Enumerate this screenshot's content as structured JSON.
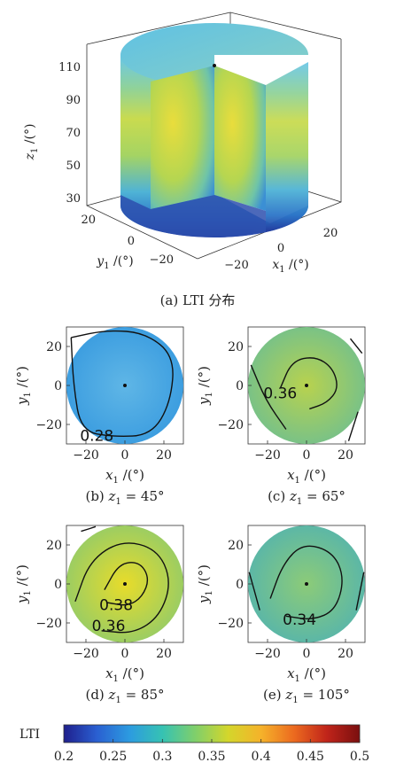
{
  "chart_data": [
    {
      "type": "surface",
      "caption_prefix": "(a) LTI 分布",
      "axes": {
        "x": {
          "label": "x",
          "sub": "1",
          "unit": " /(°)",
          "ticks": [
            "−20",
            "0",
            "20"
          ]
        },
        "y": {
          "label": "y",
          "sub": "1",
          "unit": " /(°)",
          "ticks": [
            "20",
            "0",
            "−20"
          ]
        },
        "z": {
          "label": "z",
          "sub": "1",
          "unit": " /(°)",
          "ticks": [
            "110",
            "90",
            "70",
            "50",
            "30"
          ],
          "range": [
            30,
            110
          ]
        }
      },
      "description_values": {
        "cylinder_radius_deg": 30,
        "cutaway": "quarter removed"
      }
    },
    {
      "type": "heatmap",
      "caption": {
        "prefix": "(b) ",
        "var": "z",
        "sub": "1",
        "eq": " = 45°"
      },
      "xlim": [
        -30,
        30
      ],
      "ylim": [
        -30,
        30
      ],
      "xticks": [
        "−20",
        "0",
        "20"
      ],
      "yticks": [
        "20",
        "0",
        "−20"
      ],
      "xlabel": {
        "var": "x",
        "sub": "1",
        "unit": " /(°)"
      },
      "ylabel": {
        "var": "y",
        "sub": "1",
        "unit": " /(°)"
      },
      "base_color": "#3d9ee0",
      "center_color": "#5fb6e6",
      "contours": [
        {
          "level": "0.28"
        }
      ]
    },
    {
      "type": "heatmap",
      "caption": {
        "prefix": "(c) ",
        "var": "z",
        "sub": "1",
        "eq": " = 65°"
      },
      "xlim": [
        -30,
        30
      ],
      "ylim": [
        -30,
        30
      ],
      "xticks": [
        "−20",
        "0",
        "20"
      ],
      "yticks": [
        "20",
        "0",
        "−20"
      ],
      "xlabel": {
        "var": "x",
        "sub": "1",
        "unit": " /(°)"
      },
      "ylabel": {
        "var": "y",
        "sub": "1",
        "unit": " /(°)"
      },
      "base_color": "#7ac286",
      "center_color": "#b8d24e",
      "contours": [
        {
          "level": "0.36"
        }
      ]
    },
    {
      "type": "heatmap",
      "caption": {
        "prefix": "(d) ",
        "var": "z",
        "sub": "1",
        "eq": " = 85°"
      },
      "xlim": [
        -30,
        30
      ],
      "ylim": [
        -30,
        30
      ],
      "xticks": [
        "−20",
        "0",
        "20"
      ],
      "yticks": [
        "20",
        "0",
        "−20"
      ],
      "xlabel": {
        "var": "x",
        "sub": "1",
        "unit": " /(°)"
      },
      "ylabel": {
        "var": "y",
        "sub": "1",
        "unit": " /(°)"
      },
      "base_color": "#9ccd62",
      "center_color": "#e8dc2a",
      "contours": [
        {
          "level": "0.38"
        },
        {
          "level": "0.36"
        }
      ]
    },
    {
      "type": "heatmap",
      "caption": {
        "prefix": "(e) ",
        "var": "z",
        "sub": "1",
        "eq": " = 105°"
      },
      "xlim": [
        -30,
        30
      ],
      "ylim": [
        -30,
        30
      ],
      "xticks": [
        "−20",
        "0",
        "20"
      ],
      "yticks": [
        "20",
        "0",
        "−20"
      ],
      "xlabel": {
        "var": "x",
        "sub": "1",
        "unit": " /(°)"
      },
      "ylabel": {
        "var": "y",
        "sub": "1",
        "unit": " /(°)"
      },
      "base_color": "#5cb7a6",
      "center_color": "#8ccb78",
      "contours": [
        {
          "level": "0.34"
        }
      ]
    }
  ],
  "colorbar": {
    "label": "LTI",
    "ticks": [
      "0.2",
      "0.25",
      "0.3",
      "0.35",
      "0.4",
      "0.45",
      "0.5"
    ],
    "range": [
      0.2,
      0.5
    ],
    "colors": [
      "#1f1f8c",
      "#2a5fd1",
      "#2c9be0",
      "#36c2b3",
      "#7fcf6b",
      "#d4d62b",
      "#f5b22a",
      "#ec6a1f",
      "#c0241a",
      "#7a0f0f"
    ]
  }
}
